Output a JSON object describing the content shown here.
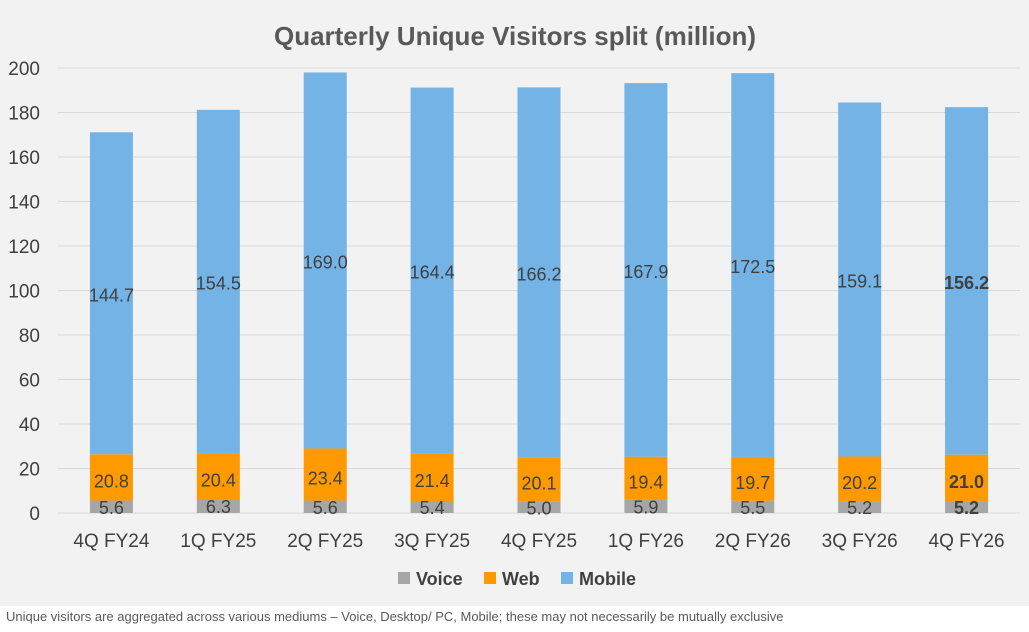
{
  "chart_data": {
    "type": "bar",
    "stacked": true,
    "title": "Quarterly Unique Visitors split (million)",
    "xlabel": "",
    "ylabel": "",
    "ylim": [
      0,
      200
    ],
    "yticks": [
      0,
      20,
      40,
      60,
      80,
      100,
      120,
      140,
      160,
      180,
      200
    ],
    "grid": true,
    "legend_position": "bottom",
    "categories": [
      "4Q FY24",
      "1Q FY25",
      "2Q FY25",
      "3Q FY25",
      "4Q FY25",
      "1Q FY26",
      "2Q FY26",
      "3Q FY26",
      "4Q FY26"
    ],
    "series": [
      {
        "name": "Voice",
        "color": "#a6a6a6",
        "values": [
          5.6,
          6.3,
          5.6,
          5.4,
          5.0,
          5.9,
          5.5,
          5.2,
          5.2
        ],
        "labels": [
          "5.6",
          "6.3",
          "5.6",
          "5.4",
          "5.0",
          "5.9",
          "5.5",
          "5.2",
          "5.2"
        ]
      },
      {
        "name": "Web",
        "color": "#ff9900",
        "values": [
          20.8,
          20.4,
          23.4,
          21.4,
          20.1,
          19.4,
          19.7,
          20.2,
          21.0
        ],
        "labels": [
          "20.8",
          "20.4",
          "23.4",
          "21.4",
          "20.1",
          "19.4",
          "19.7",
          "20.2",
          "21.0"
        ]
      },
      {
        "name": "Mobile",
        "color": "#74b3e6",
        "values": [
          144.7,
          154.5,
          169.0,
          164.4,
          166.2,
          167.9,
          172.5,
          159.1,
          156.2
        ],
        "labels": [
          "144.7",
          "154.5",
          "169.0",
          "164.4",
          "166.2",
          "167.9",
          "172.5",
          "159.1",
          "156.2"
        ]
      }
    ],
    "bold_category_index": 8
  },
  "footnote": "Unique visitors are aggregated across various mediums – Voice, Desktop/ PC, Mobile; these may not necessarily be mutually exclusive"
}
